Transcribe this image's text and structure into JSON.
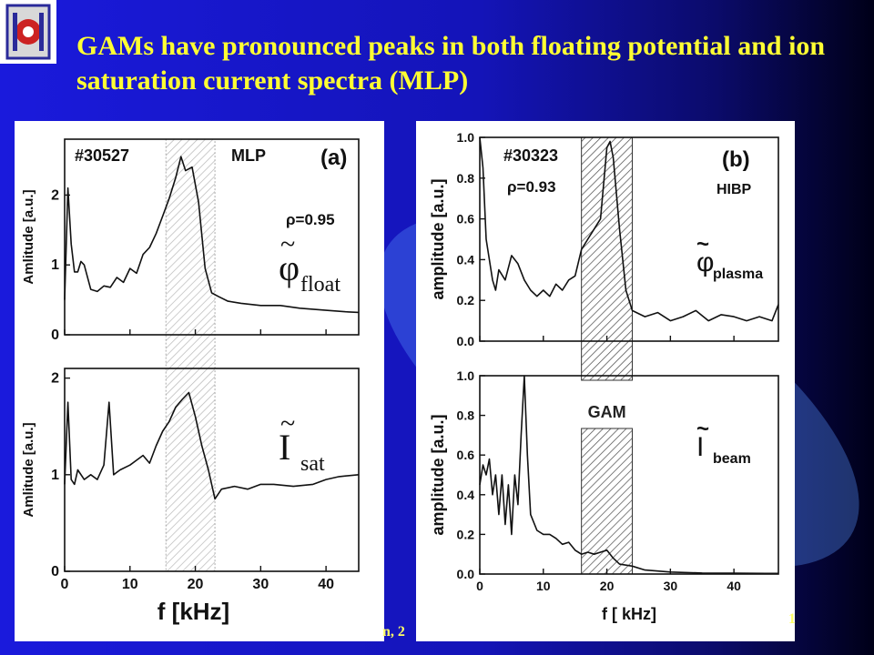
{
  "slide": {
    "title": "GAMs have pronounced peaks in both floating potential and ion saturation current spectra (MLP)",
    "footer_left": "n, 2",
    "footer_right": "1",
    "colors": {
      "title": "#ffff33",
      "background": "#1414b8",
      "panel": "#ffffff",
      "curve": "#111111"
    }
  },
  "chart_data": [
    {
      "panel": "a",
      "type": "line",
      "label": "(a)",
      "shot": "#30527",
      "diagnostic": "MLP",
      "rho": "ρ=0.95",
      "xlabel": "f [kHz]",
      "xlim": [
        0,
        45
      ],
      "xticks": [
        "0",
        "10",
        "20",
        "30",
        "40"
      ],
      "band": [
        15.5,
        23
      ],
      "subplots": [
        {
          "name": "φ̃float",
          "symbol": "φ",
          "subscript": "float",
          "ylabel": "Amlitude [a.u.]",
          "ylim": [
            0,
            2.8
          ],
          "yticks": [
            "0",
            "1",
            "2"
          ],
          "x": [
            0,
            0.5,
            1,
            1.5,
            2,
            2.5,
            3,
            4,
            5,
            6,
            7,
            8,
            9,
            10,
            11,
            12,
            13,
            14,
            15,
            16,
            17,
            17.8,
            18.5,
            19.5,
            20.5,
            21.5,
            22.5,
            23.5,
            25,
            27,
            30,
            33,
            36,
            40,
            43,
            45
          ],
          "y": [
            0.5,
            2.1,
            1.3,
            0.9,
            0.9,
            1.05,
            1.0,
            0.65,
            0.62,
            0.7,
            0.68,
            0.82,
            0.75,
            0.95,
            0.88,
            1.15,
            1.25,
            1.45,
            1.7,
            1.95,
            2.25,
            2.55,
            2.35,
            2.4,
            1.9,
            0.95,
            0.6,
            0.55,
            0.48,
            0.45,
            0.42,
            0.42,
            0.38,
            0.35,
            0.33,
            0.32
          ]
        },
        {
          "name": "Ĩsat",
          "symbol": "I",
          "subscript": "sat",
          "ylabel": "Amlitude [a.u.]",
          "ylim": [
            0,
            2.1
          ],
          "yticks": [
            "0",
            "1",
            "2"
          ],
          "x": [
            0,
            0.5,
            1,
            1.5,
            2,
            3,
            4,
            5,
            6,
            6.8,
            7.5,
            8.5,
            10,
            11,
            12,
            13,
            14,
            15,
            16,
            17,
            18,
            19,
            20,
            21,
            22,
            23,
            24,
            26,
            28,
            30,
            32,
            35,
            38,
            40,
            42,
            45
          ],
          "y": [
            0.9,
            1.75,
            0.95,
            0.9,
            1.05,
            0.95,
            1.0,
            0.95,
            1.1,
            1.75,
            1.0,
            1.05,
            1.1,
            1.15,
            1.2,
            1.12,
            1.3,
            1.45,
            1.55,
            1.7,
            1.78,
            1.85,
            1.6,
            1.3,
            1.05,
            0.75,
            0.85,
            0.88,
            0.85,
            0.9,
            0.9,
            0.88,
            0.9,
            0.95,
            0.98,
            1.0
          ]
        }
      ]
    },
    {
      "panel": "b",
      "type": "line",
      "label": "(b)",
      "shot": "#30323",
      "diagnostic": "HIBP",
      "rho": "ρ=0.93",
      "band_label": "GAM",
      "xlabel": "f [ kHz]",
      "xlim": [
        0,
        47
      ],
      "xticks": [
        "0",
        "10",
        "20",
        "30",
        "40"
      ],
      "band": [
        16,
        24
      ],
      "subplots": [
        {
          "name": "φ̃plasma",
          "symbol": "φ",
          "subscript": "plasma",
          "ylabel": "amplitude [a.u.]",
          "ylim": [
            0,
            1.0
          ],
          "yticks": [
            "0.0",
            "0.2",
            "0.4",
            "0.6",
            "0.8",
            "1.0"
          ],
          "x": [
            0,
            0.5,
            1,
            1.5,
            2,
            2.5,
            3,
            4,
            5,
            6,
            7,
            8,
            9,
            10,
            11,
            12,
            13,
            14,
            15,
            16,
            17,
            18,
            19,
            20,
            20.5,
            21,
            22,
            23,
            24,
            26,
            28,
            30,
            32,
            34,
            36,
            38,
            40,
            42,
            44,
            46,
            47
          ],
          "y": [
            1.0,
            0.85,
            0.5,
            0.4,
            0.3,
            0.25,
            0.35,
            0.3,
            0.42,
            0.38,
            0.3,
            0.25,
            0.22,
            0.25,
            0.22,
            0.28,
            0.25,
            0.3,
            0.32,
            0.45,
            0.5,
            0.55,
            0.6,
            0.95,
            0.98,
            0.9,
            0.55,
            0.25,
            0.15,
            0.12,
            0.14,
            0.1,
            0.12,
            0.15,
            0.1,
            0.13,
            0.12,
            0.1,
            0.12,
            0.1,
            0.18
          ]
        },
        {
          "name": "Ĩbeam",
          "symbol": "I",
          "subscript": "beam",
          "ylabel": "amplitude [a.u.]",
          "ylim": [
            0,
            1.0
          ],
          "yticks": [
            "0.0",
            "0.2",
            "0.4",
            "0.6",
            "0.8",
            "1.0"
          ],
          "x": [
            0,
            0.5,
            1,
            1.5,
            2,
            2.5,
            3,
            3.5,
            4,
            4.5,
            5,
            5.5,
            6,
            6.5,
            7,
            7.5,
            8,
            9,
            10,
            11,
            12,
            13,
            14,
            15,
            16,
            17,
            18,
            19,
            20,
            21,
            22,
            24,
            26,
            30,
            35,
            40,
            45,
            47
          ],
          "y": [
            0.45,
            0.55,
            0.5,
            0.58,
            0.4,
            0.5,
            0.3,
            0.5,
            0.25,
            0.45,
            0.2,
            0.5,
            0.35,
            0.7,
            1.0,
            0.6,
            0.3,
            0.22,
            0.2,
            0.2,
            0.18,
            0.15,
            0.16,
            0.12,
            0.1,
            0.11,
            0.1,
            0.11,
            0.12,
            0.08,
            0.05,
            0.04,
            0.02,
            0.01,
            0.005,
            0.004,
            0.003,
            0.003
          ]
        }
      ]
    }
  ]
}
